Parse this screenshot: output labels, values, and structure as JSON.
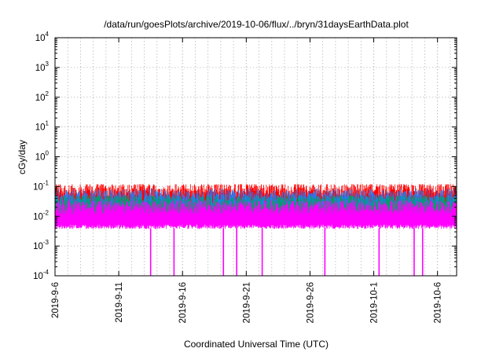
{
  "chart_data": {
    "type": "line",
    "title": "/data/run/goesPlots/archive/2019-10-06/flux/../bryn/31daysEarthData.plot",
    "xlabel": "Coordinated Universal Time (UTC)",
    "ylabel": "cGy/day",
    "yscale": "log",
    "ylim": [
      0.0001,
      10000
    ],
    "xlim": [
      "2019-09-06",
      "2019-10-07 12:00"
    ],
    "grid": true,
    "x_ticks": [
      "2019-9-6",
      "2019-9-11",
      "2019-9-16",
      "2019-9-21",
      "2019-9-26",
      "2019-10-1",
      "2019-10-6"
    ],
    "y_ticks": [
      {
        "base": "10",
        "exp": "-4",
        "value": 0.0001
      },
      {
        "base": "10",
        "exp": "-3",
        "value": 0.001
      },
      {
        "base": "10",
        "exp": "-2",
        "value": 0.01
      },
      {
        "base": "10",
        "exp": "-1",
        "value": 0.1
      },
      {
        "base": "10",
        "exp": "0",
        "value": 1
      },
      {
        "base": "10",
        "exp": "1",
        "value": 10
      },
      {
        "base": "10",
        "exp": "2",
        "value": 100
      },
      {
        "base": "10",
        "exp": "3",
        "value": 1000
      },
      {
        "base": "10",
        "exp": "4",
        "value": 10000
      }
    ],
    "series": [
      {
        "color": "#ff0000",
        "band_low": 0.006,
        "band_high": 0.075,
        "typical_peak": 0.085
      },
      {
        "color": "#1e7fff",
        "band_low": 0.006,
        "band_high": 0.045,
        "typical_peak": 0.06
      },
      {
        "color": "#00a060",
        "band_low": 0.006,
        "band_high": 0.03,
        "typical_peak": 0.035
      },
      {
        "color": "#ff00ff",
        "band_low": 0.004,
        "band_high": 0.02,
        "typical_peak": 0.025,
        "dropouts": [
          "2019-09-13 12:00",
          "2019-09-15 08:00",
          "2019-09-19 05:00",
          "2019-09-20 06:00",
          "2019-09-22 06:00",
          "2019-09-27 04:00",
          "2019-10-01 10:00",
          "2019-10-04 04:00",
          "2019-10-04 20:00"
        ]
      }
    ]
  }
}
